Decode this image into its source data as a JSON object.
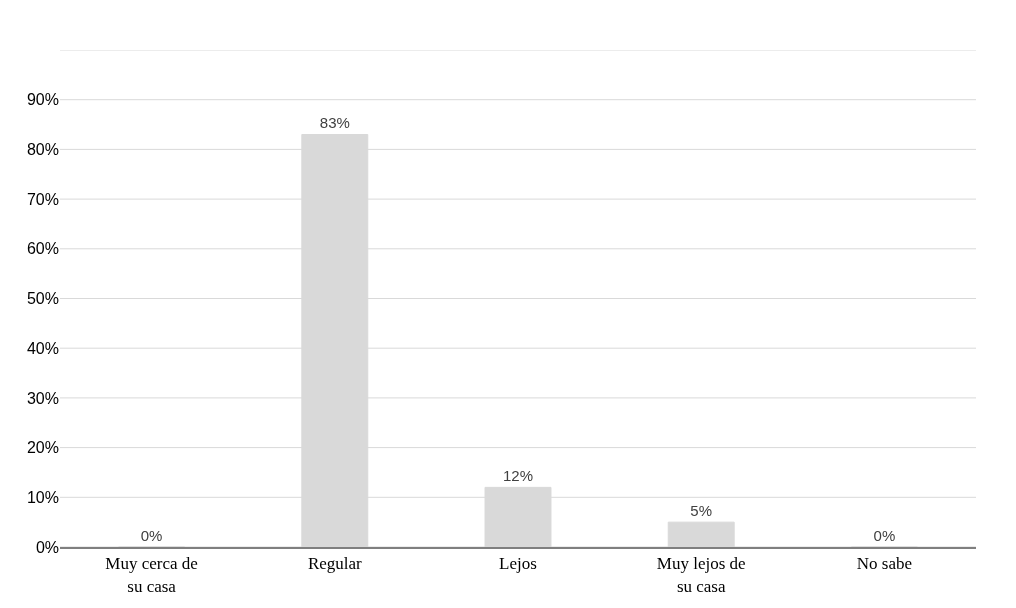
{
  "chart_data": {
    "type": "bar",
    "categories": [
      "Muy cerca de su casa",
      "Regular",
      "Lejos",
      "Muy lejos de su casa",
      "No sabe"
    ],
    "values": [
      0,
      83,
      12,
      5,
      0
    ],
    "value_labels": [
      "0%",
      "83%",
      "12%",
      "5%",
      "0%"
    ],
    "color": "#d9d9d9",
    "ylim": [
      0,
      100
    ],
    "yticks": [
      {
        "value": 0,
        "label": "0%"
      },
      {
        "value": 10,
        "label": "10%"
      },
      {
        "value": 20,
        "label": "20%"
      },
      {
        "value": 30,
        "label": "30%"
      },
      {
        "value": 40,
        "label": "40%"
      },
      {
        "value": 50,
        "label": "50%"
      },
      {
        "value": 60,
        "label": "60%"
      },
      {
        "value": 70,
        "label": "70%"
      },
      {
        "value": 80,
        "label": "80%"
      },
      {
        "value": 90,
        "label": "90%"
      },
      {
        "value": 100,
        "label": null
      }
    ],
    "grid": "y"
  }
}
